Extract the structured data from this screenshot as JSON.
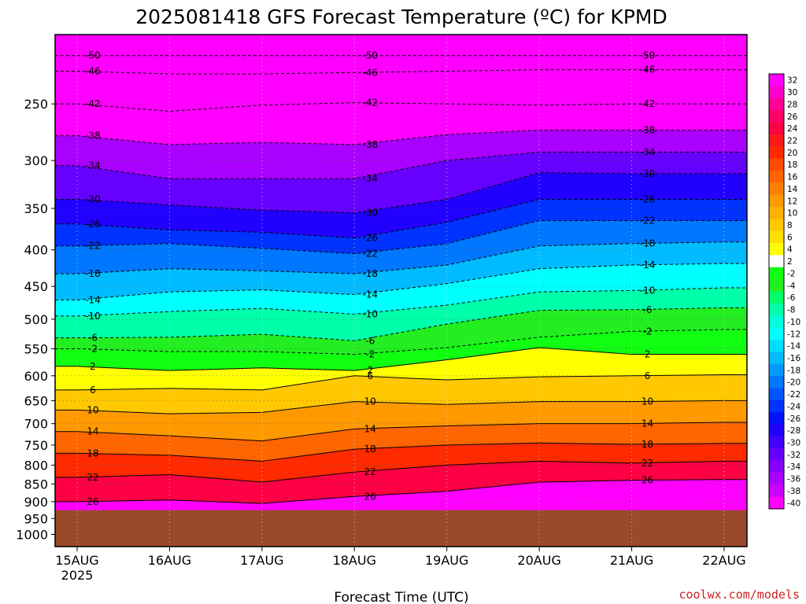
{
  "title": "2025081418 GFS Forecast Temperature (ºC) for KPMD",
  "footer": {
    "credit": "coolwx.com/models"
  },
  "chart_data": {
    "type": "heatmap",
    "title": "2025081418 GFS Forecast Temperature (ºC) for KPMD",
    "xlabel": "Forecast Time (UTC)",
    "ylabel": "",
    "x_ticks": [
      "15AUG",
      "16AUG",
      "17AUG",
      "18AUG",
      "19AUG",
      "20AUG",
      "21AUG",
      "22AUG"
    ],
    "x_tick_sublabel": "2025",
    "y_ticks": [
      250,
      300,
      350,
      400,
      450,
      500,
      550,
      600,
      650,
      700,
      750,
      800,
      850,
      900,
      950,
      1000
    ],
    "yscale": "log-pressure",
    "ylim": [
      1040,
      200
    ],
    "surface_pressure": 925,
    "grid": true,
    "colorbar": {
      "labels": [
        32,
        30,
        28,
        26,
        24,
        22,
        20,
        18,
        16,
        14,
        12,
        10,
        8,
        6,
        4,
        2,
        -2,
        -4,
        -6,
        -8,
        -10,
        -12,
        -14,
        -16,
        -18,
        -20,
        -22,
        -24,
        -26,
        -28,
        -30,
        -32,
        -34,
        -36,
        -38,
        -40
      ],
      "colors": [
        "#ff00ff",
        "#ff00cc",
        "#ff0099",
        "#ff0066",
        "#ff0044",
        "#ff1a1a",
        "#ff2a00",
        "#ff4a00",
        "#ff6600",
        "#ff8000",
        "#ff9900",
        "#ffb000",
        "#ffc800",
        "#ffdf00",
        "#ffff00",
        "#ffffff",
        "#11ff11",
        "#22ee22",
        "#00ff66",
        "#00ffaa",
        "#00ffdd",
        "#00ffff",
        "#00ddff",
        "#00bbff",
        "#0099ff",
        "#0077ff",
        "#0055ff",
        "#0033ff",
        "#0011ff",
        "#2200ff",
        "#4400ff",
        "#6600ff",
        "#8800ff",
        "#aa00ff",
        "#cc00ff",
        "#ff00ff"
      ]
    },
    "isotherms": [
      {
        "value": -50,
        "pressure": [
          214,
          214,
          214,
          214,
          214,
          214,
          214,
          214
        ]
      },
      {
        "value": -46,
        "pressure": [
          225,
          227,
          227,
          226,
          225,
          224,
          224,
          224
        ]
      },
      {
        "value": -42,
        "pressure": [
          250,
          256,
          251,
          249,
          250,
          251,
          250,
          250
        ]
      },
      {
        "value": -38,
        "pressure": [
          277,
          285,
          283,
          285,
          276,
          272,
          272,
          272
        ]
      },
      {
        "value": -34,
        "pressure": [
          305,
          318,
          318,
          318,
          300,
          292,
          292,
          292
        ]
      },
      {
        "value": -30,
        "pressure": [
          340,
          346,
          352,
          355,
          340,
          312,
          313,
          313
        ]
      },
      {
        "value": -26,
        "pressure": [
          368,
          375,
          378,
          385,
          366,
          340,
          340,
          340
        ]
      },
      {
        "value": -22,
        "pressure": [
          395,
          392,
          398,
          405,
          392,
          364,
          364,
          364
        ]
      },
      {
        "value": -18,
        "pressure": [
          432,
          425,
          428,
          432,
          420,
          395,
          392,
          390
        ]
      },
      {
        "value": -14,
        "pressure": [
          470,
          458,
          455,
          462,
          446,
          425,
          420,
          418
        ]
      },
      {
        "value": -10,
        "pressure": [
          495,
          488,
          483,
          492,
          478,
          458,
          456,
          452
        ]
      },
      {
        "value": -6,
        "pressure": [
          531,
          530,
          525,
          536,
          508,
          486,
          485,
          482
        ]
      },
      {
        "value": -2,
        "pressure": [
          550,
          555,
          555,
          560,
          548,
          530,
          520,
          517
        ]
      },
      {
        "value": 2,
        "pressure": [
          582,
          590,
          585,
          590,
          570,
          548,
          560,
          560
        ]
      },
      {
        "value": 6,
        "pressure": [
          628,
          625,
          628,
          600,
          608,
          602,
          600,
          598
        ]
      },
      {
        "value": 10,
        "pressure": [
          670,
          678,
          675,
          652,
          658,
          652,
          652,
          650
        ]
      },
      {
        "value": 14,
        "pressure": [
          718,
          728,
          740,
          712,
          705,
          700,
          700,
          697
        ]
      },
      {
        "value": 18,
        "pressure": [
          770,
          775,
          790,
          760,
          750,
          745,
          748,
          746
        ]
      },
      {
        "value": 22,
        "pressure": [
          832,
          825,
          845,
          818,
          800,
          790,
          795,
          790
        ]
      },
      {
        "value": 26,
        "pressure": [
          900,
          895,
          905,
          885,
          870,
          845,
          840,
          838
        ]
      }
    ]
  }
}
